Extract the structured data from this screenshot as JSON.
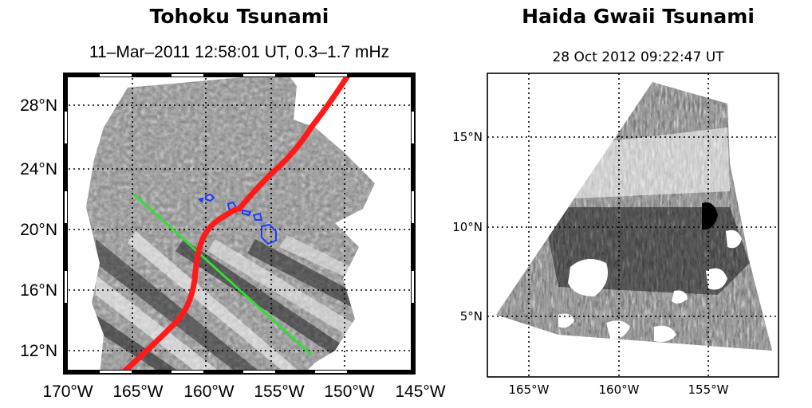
{
  "left_panel": {
    "title": "Tohoku Tsunami",
    "subtitle": "11–Mar–2011 12:58:01 UT, 0.3–1.7 mHz",
    "x_ticks": [
      "170°W",
      "165°W",
      "160°W",
      "155°W",
      "150°W",
      "145°W"
    ],
    "y_ticks": [
      "28°N",
      "24°N",
      "20°N",
      "16°N",
      "12°N"
    ],
    "track_color": "#ff1a1a",
    "line_color": "#33dd33",
    "island_color": "#1a3cff"
  },
  "right_panel": {
    "title": "Haida Gwaii Tsunami",
    "subtitle": "28 Oct 2012 09:22:47 UT",
    "x_ticks": [
      "165°W",
      "160°W",
      "155°W"
    ],
    "y_ticks": [
      "15°N",
      "10°N",
      "5°N"
    ]
  }
}
